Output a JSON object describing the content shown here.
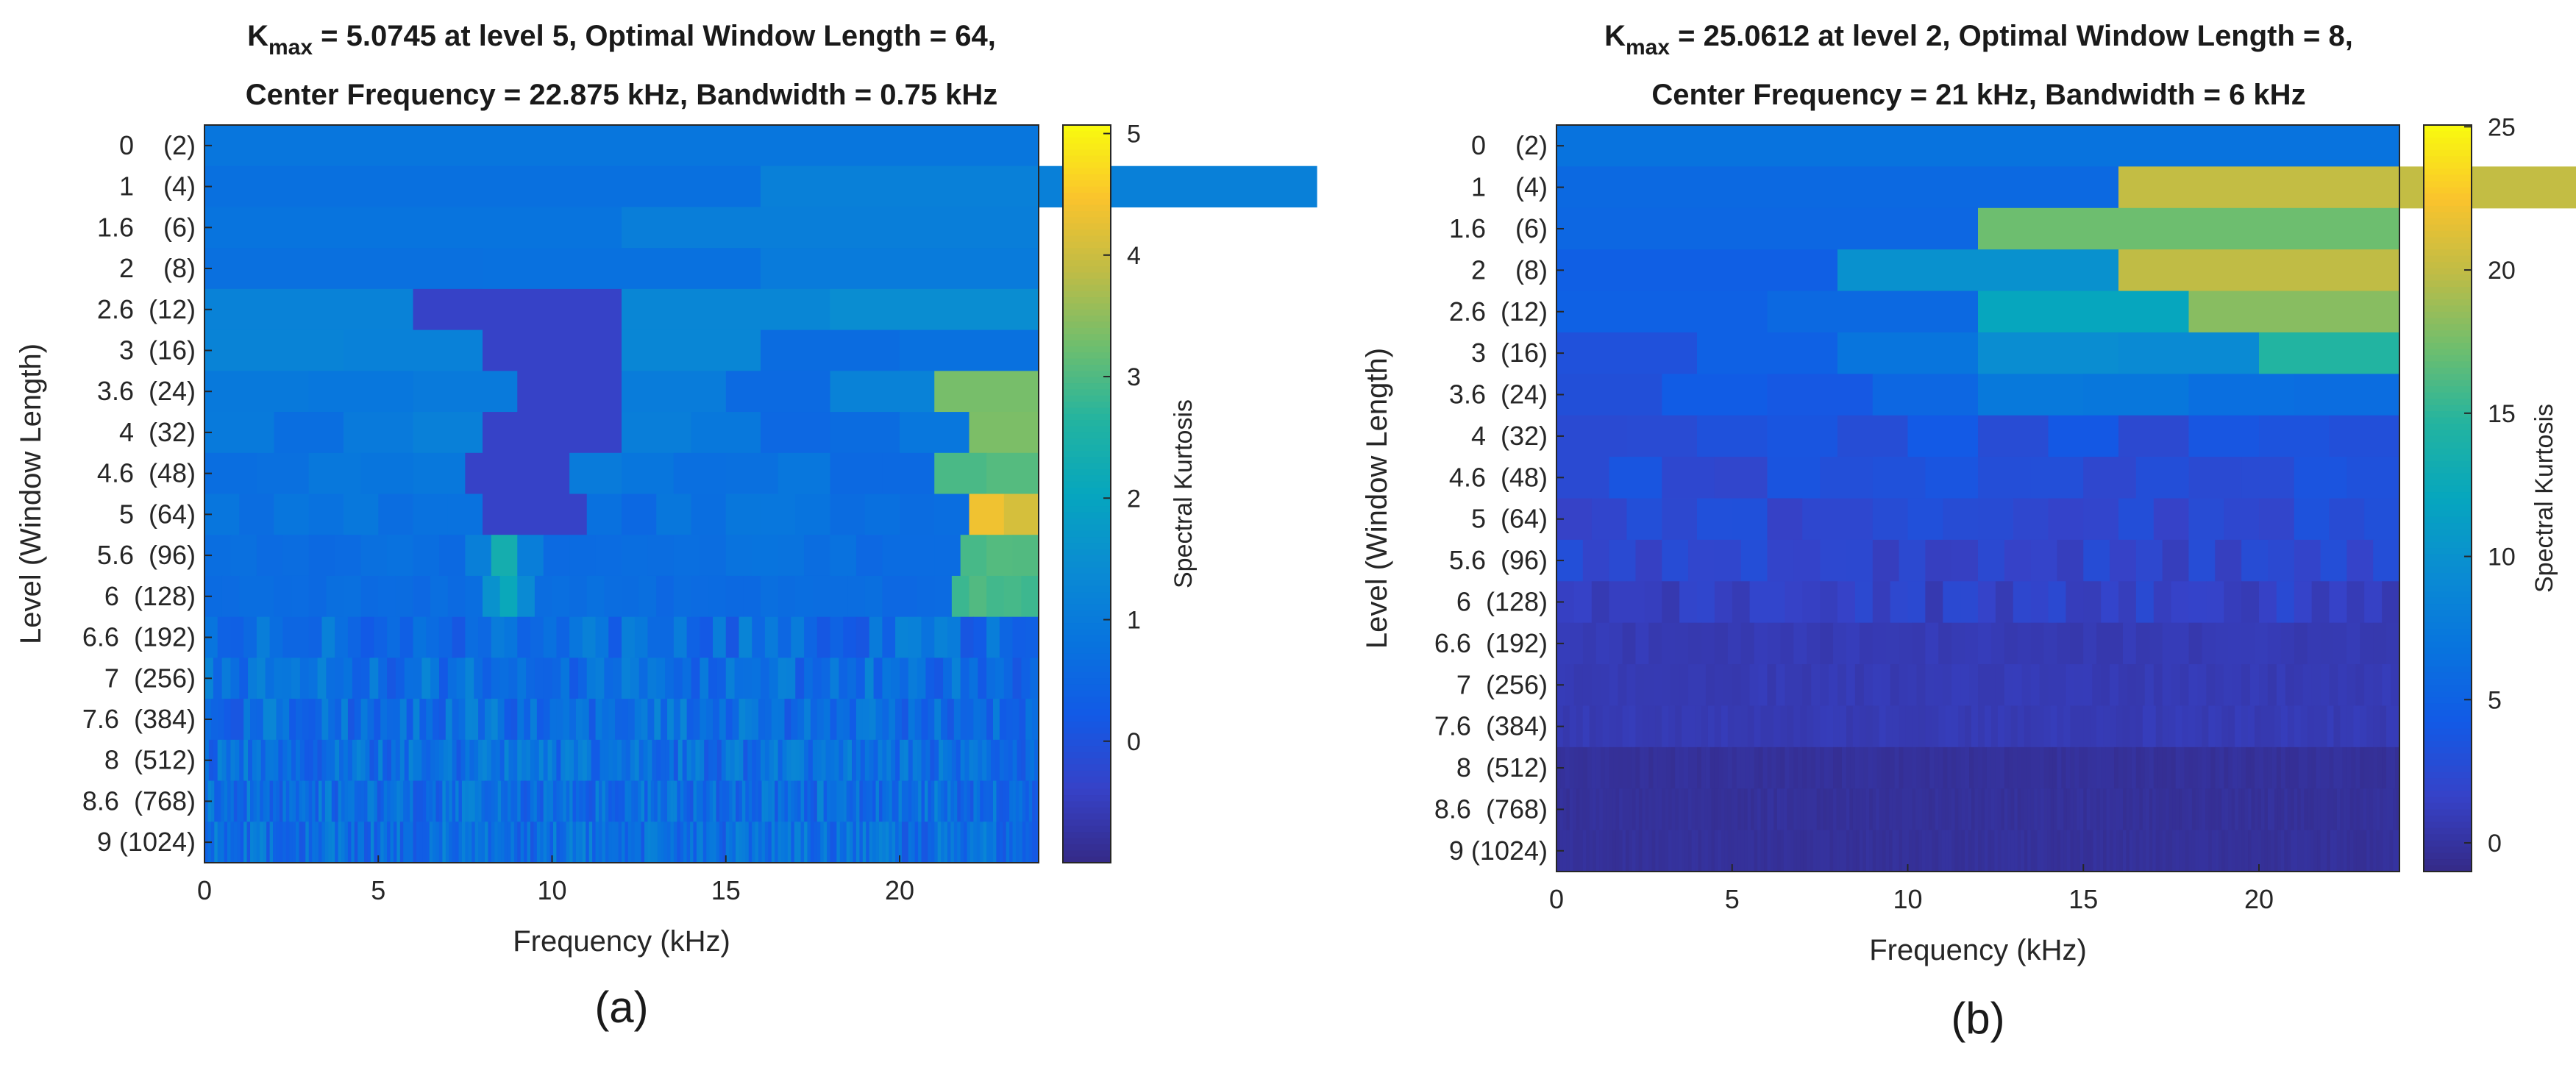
{
  "chart_data": [
    {
      "type": "heatmap",
      "panel_label": "(a)",
      "title": {
        "k": "K",
        "k_sub": "max",
        "line1_rest": " = 5.0745 at level 5, Optimal Window Length = 64,",
        "line2": "Center Frequency = 22.875 kHz, Bandwidth = 0.75 kHz"
      },
      "xlabel": "Frequency (kHz)",
      "ylabel": "Level (Window Length)",
      "colorbar_label": "Spectral Kurtosis",
      "xlim": [
        0,
        24
      ],
      "xticks": [
        0,
        5,
        10,
        15,
        20
      ],
      "ytick_labels": [
        "0    (2)",
        "1    (4)",
        "1.6    (6)",
        "2    (8)",
        "2.6  (12)",
        "3  (16)",
        "3.6  (24)",
        "4  (32)",
        "4.6  (48)",
        "5  (64)",
        "5.6  (96)",
        "6  (128)",
        "6.6  (192)",
        "7  (256)",
        "7.6  (384)",
        "8  (512)",
        "8.6  (768)",
        "9 (1024)"
      ],
      "clim": [
        -1,
        5.07
      ],
      "cticks": [
        0,
        1,
        2,
        3,
        4,
        5
      ],
      "kmax": 5.0745,
      "optimal_level": 5,
      "optimal_window_length": 64,
      "center_frequency_khz": 22.875,
      "bandwidth_khz": 0.75
    },
    {
      "type": "heatmap",
      "panel_label": "(b)",
      "title": {
        "k": "K",
        "k_sub": "max",
        "line1_rest": " = 25.0612 at level 2, Optimal Window Length = 8,",
        "line2": "Center Frequency = 21 kHz, Bandwidth = 6 kHz"
      },
      "xlabel": "Frequency (kHz)",
      "ylabel": "Level (Window Length)",
      "colorbar_label": "Spectral Kurtosis",
      "xlim": [
        0,
        24
      ],
      "xticks": [
        0,
        5,
        10,
        15,
        20
      ],
      "ytick_labels": [
        "0    (2)",
        "1    (4)",
        "1.6    (6)",
        "2    (8)",
        "2.6  (12)",
        "3  (16)",
        "3.6  (24)",
        "4  (32)",
        "4.6  (48)",
        "5  (64)",
        "5.6  (96)",
        "6  (128)",
        "6.6  (192)",
        "7  (256)",
        "7.6  (384)",
        "8  (512)",
        "8.6  (768)",
        "9 (1024)"
      ],
      "clim": [
        -1,
        25.06
      ],
      "cticks": [
        0,
        5,
        10,
        15,
        20,
        25
      ],
      "kmax": 25.0612,
      "optimal_level": 2,
      "optimal_window_length": 8,
      "center_frequency_khz": 21,
      "bandwidth_khz": 6
    }
  ]
}
